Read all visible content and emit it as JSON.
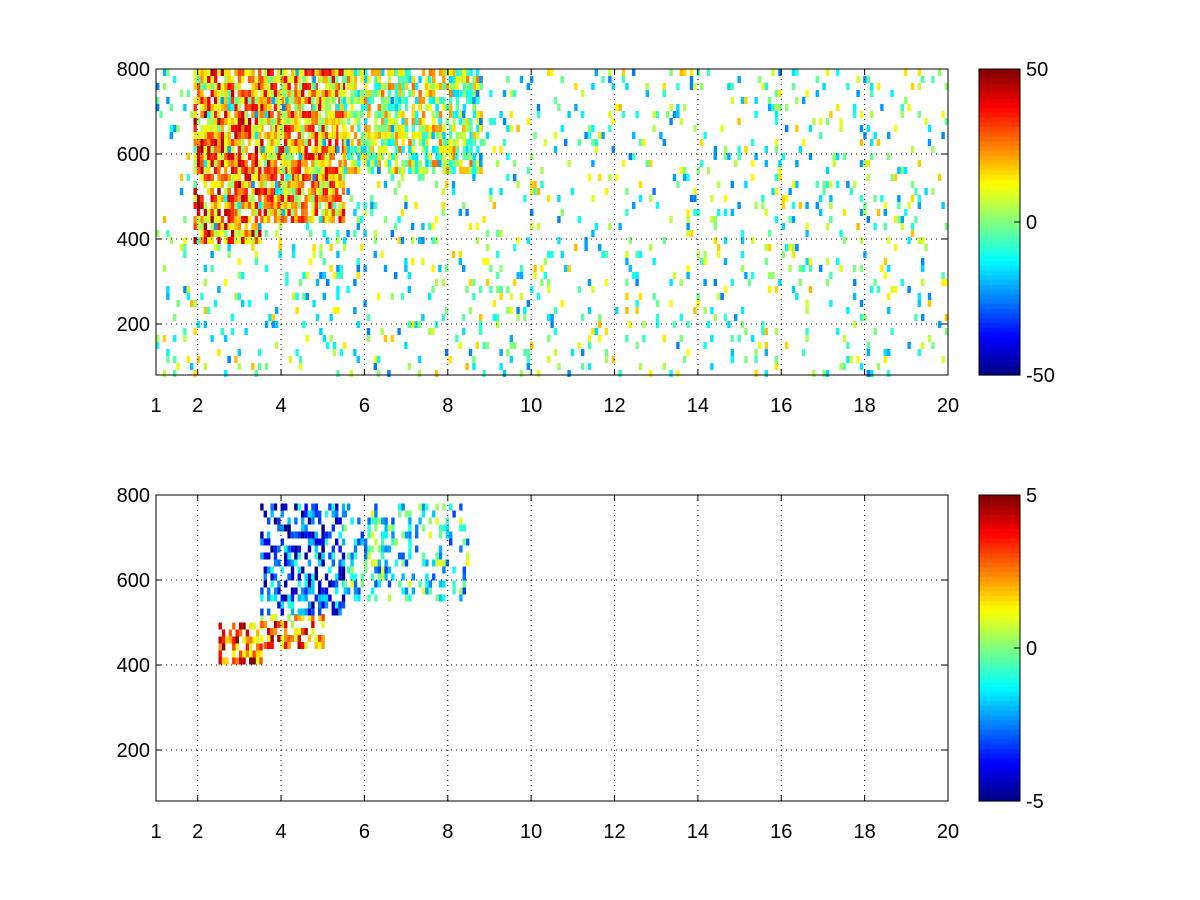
{
  "chart_data": [
    {
      "type": "heatmap",
      "title": "",
      "xlabel": "",
      "ylabel": "",
      "xlim": [
        1,
        20
      ],
      "ylim": [
        80,
        800
      ],
      "grid": true,
      "x_ticks": [
        1,
        2,
        4,
        6,
        8,
        10,
        12,
        14,
        16,
        18,
        20
      ],
      "x_tick_labels": [
        "1",
        "2",
        "4",
        "6",
        "8",
        "10",
        "12",
        "14",
        "16",
        "18",
        "20"
      ],
      "y_ticks": [
        200,
        400,
        600,
        800
      ],
      "y_tick_labels": [
        "200",
        "400",
        "600",
        "800"
      ],
      "colorbar": {
        "colormap": "jet",
        "min": -50,
        "max": 50,
        "ticks": [
          -50,
          0,
          50
        ],
        "tick_labels": [
          "-50",
          "0",
          "50"
        ]
      },
      "regions": [
        {
          "x": [
            1.9,
            3.5
          ],
          "y": [
            400,
            800
          ],
          "value": 25,
          "density": 0.85
        },
        {
          "x": [
            3.5,
            5.5
          ],
          "y": [
            440,
            800
          ],
          "value": 20,
          "density": 0.85
        },
        {
          "x": [
            5.5,
            8.8
          ],
          "y": [
            560,
            800
          ],
          "value": 5,
          "density": 0.7
        },
        {
          "x": [
            1,
            20
          ],
          "y": [
            80,
            800
          ],
          "value": -3,
          "density": 0.12
        }
      ]
    },
    {
      "type": "heatmap",
      "title": "",
      "xlabel": "",
      "ylabel": "",
      "xlim": [
        1,
        20
      ],
      "ylim": [
        80,
        800
      ],
      "grid": true,
      "x_ticks": [
        1,
        2,
        4,
        6,
        8,
        10,
        12,
        14,
        16,
        18,
        20
      ],
      "x_tick_labels": [
        "1",
        "2",
        "4",
        "6",
        "8",
        "10",
        "12",
        "14",
        "16",
        "18",
        "20"
      ],
      "y_ticks": [
        200,
        400,
        600,
        800
      ],
      "y_tick_labels": [
        "200",
        "400",
        "600",
        "800"
      ],
      "colorbar": {
        "colormap": "jet",
        "min": -5,
        "max": 5,
        "ticks": [
          -5,
          0,
          5
        ],
        "tick_labels": [
          "-5",
          "0",
          "5"
        ]
      },
      "regions": [
        {
          "x": [
            2.5,
            3.5
          ],
          "y": [
            410,
            500
          ],
          "value": 3,
          "density": 0.6
        },
        {
          "x": [
            3.5,
            5.0
          ],
          "y": [
            440,
            520
          ],
          "value": 2.5,
          "density": 0.6
        },
        {
          "x": [
            3.5,
            5.5
          ],
          "y": [
            520,
            780
          ],
          "value": -3,
          "density": 0.5
        },
        {
          "x": [
            5.5,
            8.5
          ],
          "y": [
            560,
            780
          ],
          "value": -1,
          "density": 0.35
        }
      ]
    }
  ]
}
